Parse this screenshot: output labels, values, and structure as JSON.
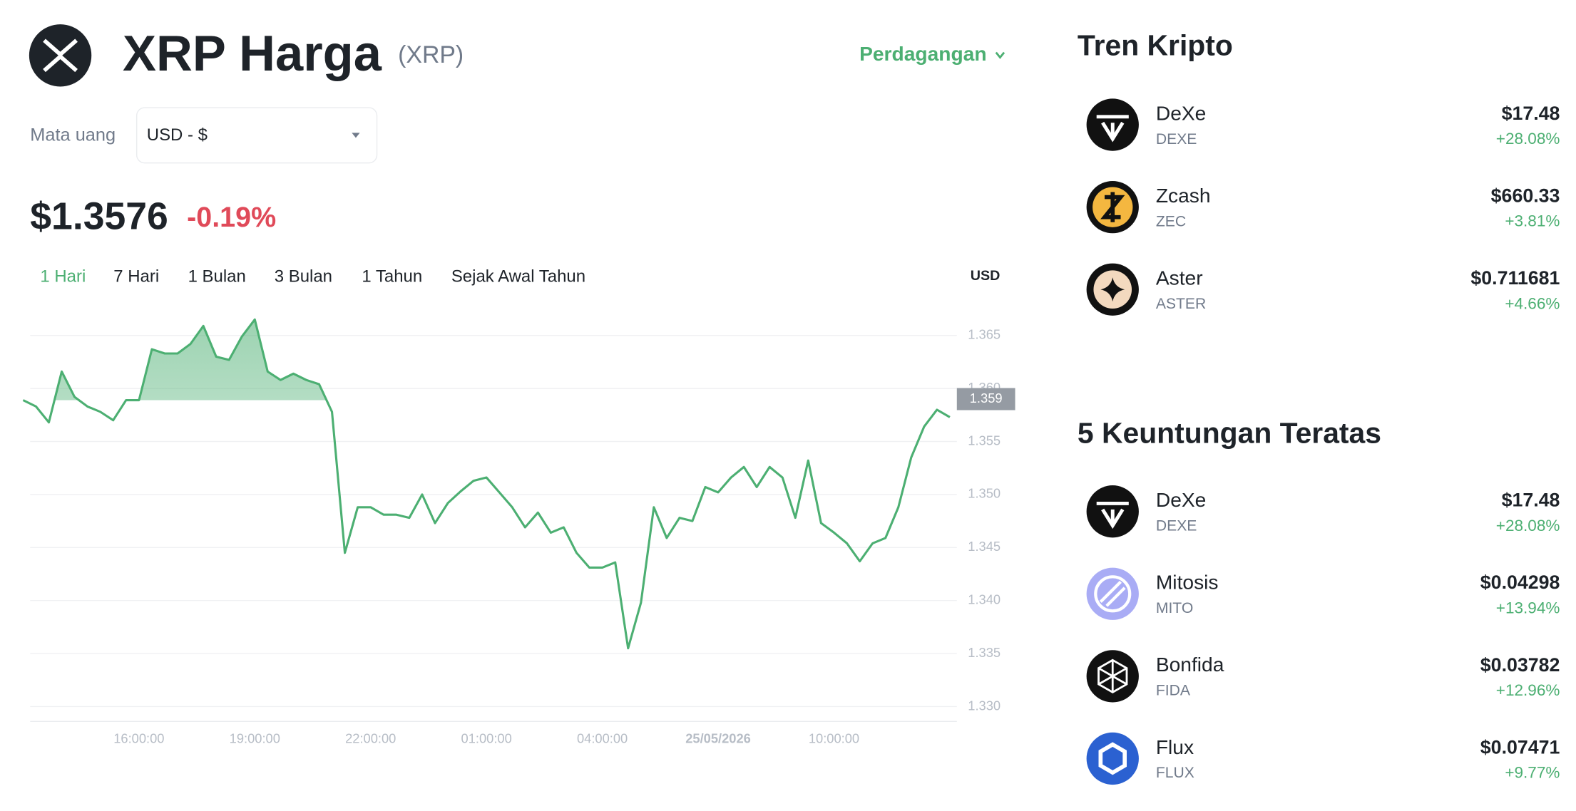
{
  "header": {
    "title": "XRP Harga",
    "symbol": "(XRP)",
    "trade_menu": "Perdagangan",
    "currency_label": "Mata uang",
    "currency_select": "USD - $",
    "price": "$1.3576",
    "change": "-0.19%"
  },
  "tabs": [
    "1 Hari",
    "7 Hari",
    "1 Bulan",
    "3 Bulan",
    "1 Tahun",
    "Sejak Awal Tahun"
  ],
  "chart_data": {
    "type": "line",
    "unit_label": "USD",
    "color": "#4caf72",
    "categories": [
      null,
      null,
      null,
      null,
      null,
      null,
      null,
      null,
      null,
      "16:00:00",
      null,
      null,
      null,
      null,
      null,
      null,
      null,
      null,
      "19:00:00",
      null,
      null,
      null,
      null,
      null,
      null,
      null,
      null,
      "22:00:00",
      null,
      null,
      null,
      null,
      null,
      null,
      null,
      null,
      "01:00:00",
      null,
      null,
      null,
      null,
      null,
      null,
      null,
      null,
      "04:00:00",
      null,
      null,
      null,
      null,
      null,
      null,
      null,
      null,
      "25/05/2026",
      null,
      null,
      null,
      null,
      null,
      null,
      null,
      null,
      "10:00:00",
      null,
      null,
      null,
      null,
      null,
      null,
      null,
      null,
      null
    ],
    "values": [
      1.3589,
      1.3583,
      1.3568,
      1.3616,
      1.3592,
      1.3583,
      1.3578,
      1.357,
      1.3589,
      1.3589,
      1.3637,
      1.3633,
      1.3633,
      1.3642,
      1.3659,
      1.363,
      1.3627,
      1.3649,
      1.3665,
      1.3616,
      1.3608,
      1.3614,
      1.3608,
      1.3604,
      1.3578,
      1.3445,
      1.3488,
      1.3488,
      1.3481,
      1.3481,
      1.3478,
      1.35,
      1.3473,
      1.3492,
      1.3503,
      1.3513,
      1.3516,
      1.3502,
      1.3488,
      1.3469,
      1.3483,
      1.3464,
      1.3469,
      1.3445,
      1.3431,
      1.3431,
      1.3436,
      1.3355,
      1.3398,
      1.3488,
      1.3459,
      1.3478,
      1.3475,
      1.3507,
      1.3502,
      1.3516,
      1.3526,
      1.3507,
      1.3526,
      1.3516,
      1.3478,
      1.3532,
      1.3473,
      1.3464,
      1.3454,
      1.3437,
      1.3454,
      1.3459,
      1.3488,
      1.3535,
      1.3564,
      1.358,
      1.3573
    ],
    "ylim": [
      1.3286,
      1.3682
    ],
    "yticks": [
      {
        "value": 1.33,
        "label": "1.330"
      },
      1.335,
      {
        "value": 1.34,
        "label": "1.340"
      },
      1.345,
      {
        "value": 1.35,
        "label": "1.350"
      },
      1.355,
      {
        "value": 1.36,
        "label": "1.360"
      },
      1.365
    ],
    "grid": true,
    "price_tag": {
      "value": 1.359,
      "label": "1.359"
    }
  },
  "trending": {
    "title": "Tren Kripto",
    "items": [
      {
        "name": "DeXe",
        "symbol": "DEXE",
        "price": "$17.48",
        "change": "+28.08%"
      },
      {
        "name": "Zcash",
        "symbol": "ZEC",
        "price": "$660.33",
        "change": "+3.81%"
      },
      {
        "name": "Aster",
        "symbol": "ASTER",
        "price": "$0.711681",
        "change": "+4.66%"
      }
    ]
  },
  "gainers": {
    "title": "5 Keuntungan Teratas",
    "items": [
      {
        "name": "DeXe",
        "symbol": "DEXE",
        "price": "$17.48",
        "change": "+28.08%"
      },
      {
        "name": "Mitosis",
        "symbol": "MITO",
        "price": "$0.04298",
        "change": "+13.94%"
      },
      {
        "name": "Bonfida",
        "symbol": "FIDA",
        "price": "$0.03782",
        "change": "+12.96%"
      },
      {
        "name": "Flux",
        "symbol": "FLUX",
        "price": "$0.07471",
        "change": "+9.77%"
      }
    ]
  }
}
